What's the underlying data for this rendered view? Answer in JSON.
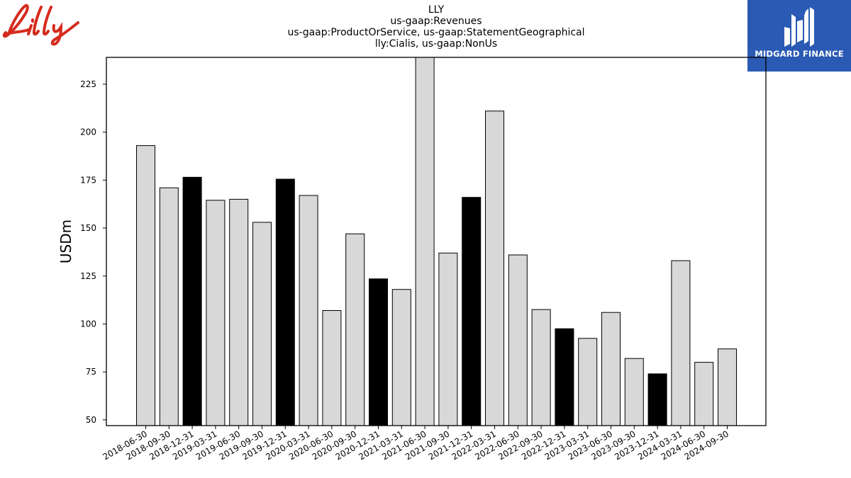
{
  "header": {
    "title_lines": [
      "LLY",
      "us-gaap:Revenues",
      "us-gaap:ProductOrService, us-gaap:StatementGeographical",
      "lly:Cialis, us-gaap:NonUs"
    ]
  },
  "logos": {
    "left_text": "Lilly",
    "left_color": "#d52b1e",
    "right_text": "MIDGARD FINANCE",
    "right_bg": "#2a5ab3"
  },
  "chart_data": {
    "type": "bar",
    "title": "LLY",
    "ylabel": "USDm",
    "xlabel": "",
    "ylim": [
      47,
      239
    ],
    "yticks": [
      50,
      75,
      100,
      125,
      150,
      175,
      200,
      225
    ],
    "categories": [
      "2018-06-30",
      "2018-09-30",
      "2018-12-31",
      "2019-03-31",
      "2019-06-30",
      "2019-09-30",
      "2019-12-31",
      "2020-03-31",
      "2020-06-30",
      "2020-09-30",
      "2020-12-31",
      "2021-03-31",
      "2021-06-30",
      "2021-09-30",
      "2021-12-31",
      "2022-03-31",
      "2022-06-30",
      "2022-09-30",
      "2022-12-31",
      "2023-03-31",
      "2023-06-30",
      "2023-09-30",
      "2023-12-31",
      "2024-03-31",
      "2024-06-30",
      "2024-09-30"
    ],
    "values": [
      193,
      171,
      176.5,
      164.5,
      165,
      153,
      175.5,
      167,
      107,
      147,
      123.5,
      118,
      240,
      137,
      166,
      211,
      136,
      107.5,
      97.5,
      92.5,
      106,
      82,
      74,
      133,
      80,
      87
    ],
    "colors": {
      "normal": "#d8d8d8",
      "year_end": "#000000",
      "edge": "#000000"
    }
  }
}
